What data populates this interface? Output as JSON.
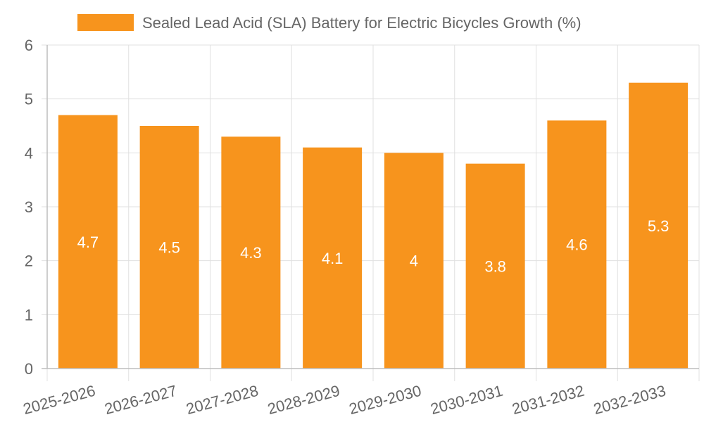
{
  "chart_data": {
    "type": "bar",
    "categories": [
      "2025-2026",
      "2026-2027",
      "2027-2028",
      "2028-2029",
      "2029-2030",
      "2030-2031",
      "2031-2032",
      "2032-2033"
    ],
    "series": [
      {
        "name": "Sealed Lead Acid (SLA) Battery for Electric Bicycles Growth (%)",
        "values": [
          4.7,
          4.5,
          4.3,
          4.1,
          4,
          3.8,
          4.6,
          5.3
        ]
      }
    ],
    "title": "",
    "xlabel": "",
    "ylabel": "",
    "ylim": [
      0,
      6
    ],
    "yticks": [
      "0",
      "1",
      "2",
      "3",
      "4",
      "5",
      "6"
    ],
    "grid": true,
    "legend_position": "top-center",
    "data_labels": [
      "4.7",
      "4.5",
      "4.3",
      "4.1",
      "4",
      "3.8",
      "4.6",
      "5.3"
    ],
    "colors": {
      "bar": "#f7941d",
      "grid": "#e0e0e0",
      "axis": "#bdbdbd",
      "text": "#666666",
      "label": "#ffffff"
    }
  }
}
